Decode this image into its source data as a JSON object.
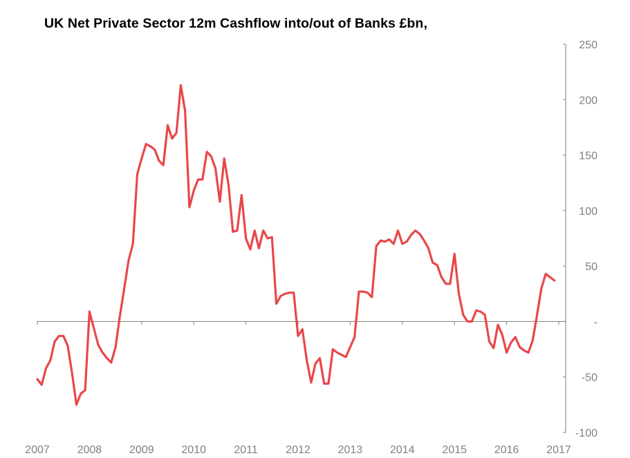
{
  "chart_data": {
    "type": "line",
    "title": "UK Net Private Sector 12m Cashflow into/out of Banks £bn,",
    "xlabel": "",
    "ylabel": "",
    "xlim": [
      2007,
      2017
    ],
    "ylim": [
      -100,
      250
    ],
    "x_ticks": [
      "2007",
      "2008",
      "2009",
      "2010",
      "2011",
      "2012",
      "2013",
      "2014",
      "2015",
      "2016",
      "2017"
    ],
    "y_ticks": [
      "-100",
      "-50",
      "-",
      "50",
      "100",
      "150",
      "200",
      "250"
    ],
    "y_tick_values": [
      -100,
      -50,
      0,
      50,
      100,
      150,
      200,
      250
    ],
    "grid": false,
    "line_color": "#e8474a",
    "axis_color": "#7f7f7f",
    "series": [
      {
        "x": [
          2007.0,
          2007.083,
          2007.167,
          2007.25,
          2007.333,
          2007.417,
          2007.5,
          2007.583,
          2007.667,
          2007.75,
          2007.833,
          2007.917,
          2008.0,
          2008.083,
          2008.167,
          2008.25,
          2008.333,
          2008.417,
          2008.5,
          2008.583,
          2008.667,
          2008.75,
          2008.833,
          2008.917,
          2009.0,
          2009.083,
          2009.167,
          2009.25,
          2009.333,
          2009.417,
          2009.5,
          2009.583,
          2009.667,
          2009.75,
          2009.833,
          2009.917,
          2010.0,
          2010.083,
          2010.167,
          2010.25,
          2010.333,
          2010.417,
          2010.5,
          2010.583,
          2010.667,
          2010.75,
          2010.833,
          2010.917,
          2011.0,
          2011.083,
          2011.167,
          2011.25,
          2011.333,
          2011.417,
          2011.5,
          2011.583,
          2011.667,
          2011.75,
          2011.833,
          2011.917,
          2012.0,
          2012.083,
          2012.167,
          2012.25,
          2012.333,
          2012.417,
          2012.5,
          2012.583,
          2012.667,
          2012.75,
          2012.833,
          2012.917,
          2013.0,
          2013.083,
          2013.167,
          2013.25,
          2013.333,
          2013.417,
          2013.5,
          2013.583,
          2013.667,
          2013.75,
          2013.833,
          2013.917,
          2014.0,
          2014.083,
          2014.167,
          2014.25,
          2014.333,
          2014.417,
          2014.5,
          2014.583,
          2014.667,
          2014.75,
          2014.833,
          2014.917,
          2015.0,
          2015.083,
          2015.167,
          2015.25,
          2015.333,
          2015.417,
          2015.5,
          2015.583,
          2015.667,
          2015.75,
          2015.833,
          2015.917,
          2016.0,
          2016.083,
          2016.167,
          2016.25,
          2016.333,
          2016.417,
          2016.5,
          2016.583,
          2016.667,
          2016.75,
          2016.833,
          2016.917
        ],
        "values": [
          -52,
          -57,
          -42,
          -35,
          -18,
          -13,
          -13,
          -22,
          -47,
          -75,
          -65,
          -62,
          9,
          -6,
          -21,
          -28,
          -33,
          -37,
          -23,
          5,
          30,
          55,
          70,
          133,
          147,
          160,
          158,
          155,
          145,
          141,
          177,
          165,
          170,
          213,
          190,
          103,
          118,
          128,
          128,
          153,
          149,
          138,
          108,
          147,
          123,
          81,
          82,
          114,
          75,
          65,
          82,
          66,
          82,
          75,
          76,
          16,
          23,
          25,
          26,
          26,
          -13,
          -7,
          -35,
          -55,
          -38,
          -33,
          -56,
          -56,
          -25,
          -28,
          -30,
          -32,
          -23,
          -14,
          27,
          27,
          26,
          22,
          68,
          73,
          72,
          74,
          70,
          82,
          70,
          72,
          78,
          82,
          79,
          73,
          66,
          53,
          51,
          40,
          34,
          34,
          61,
          25,
          6,
          0,
          0,
          10,
          9,
          6,
          -18,
          -24,
          -3,
          -12,
          -28,
          -19,
          -14,
          -23,
          -26,
          -28,
          -17,
          6,
          30,
          43,
          40,
          37
        ]
      }
    ]
  }
}
